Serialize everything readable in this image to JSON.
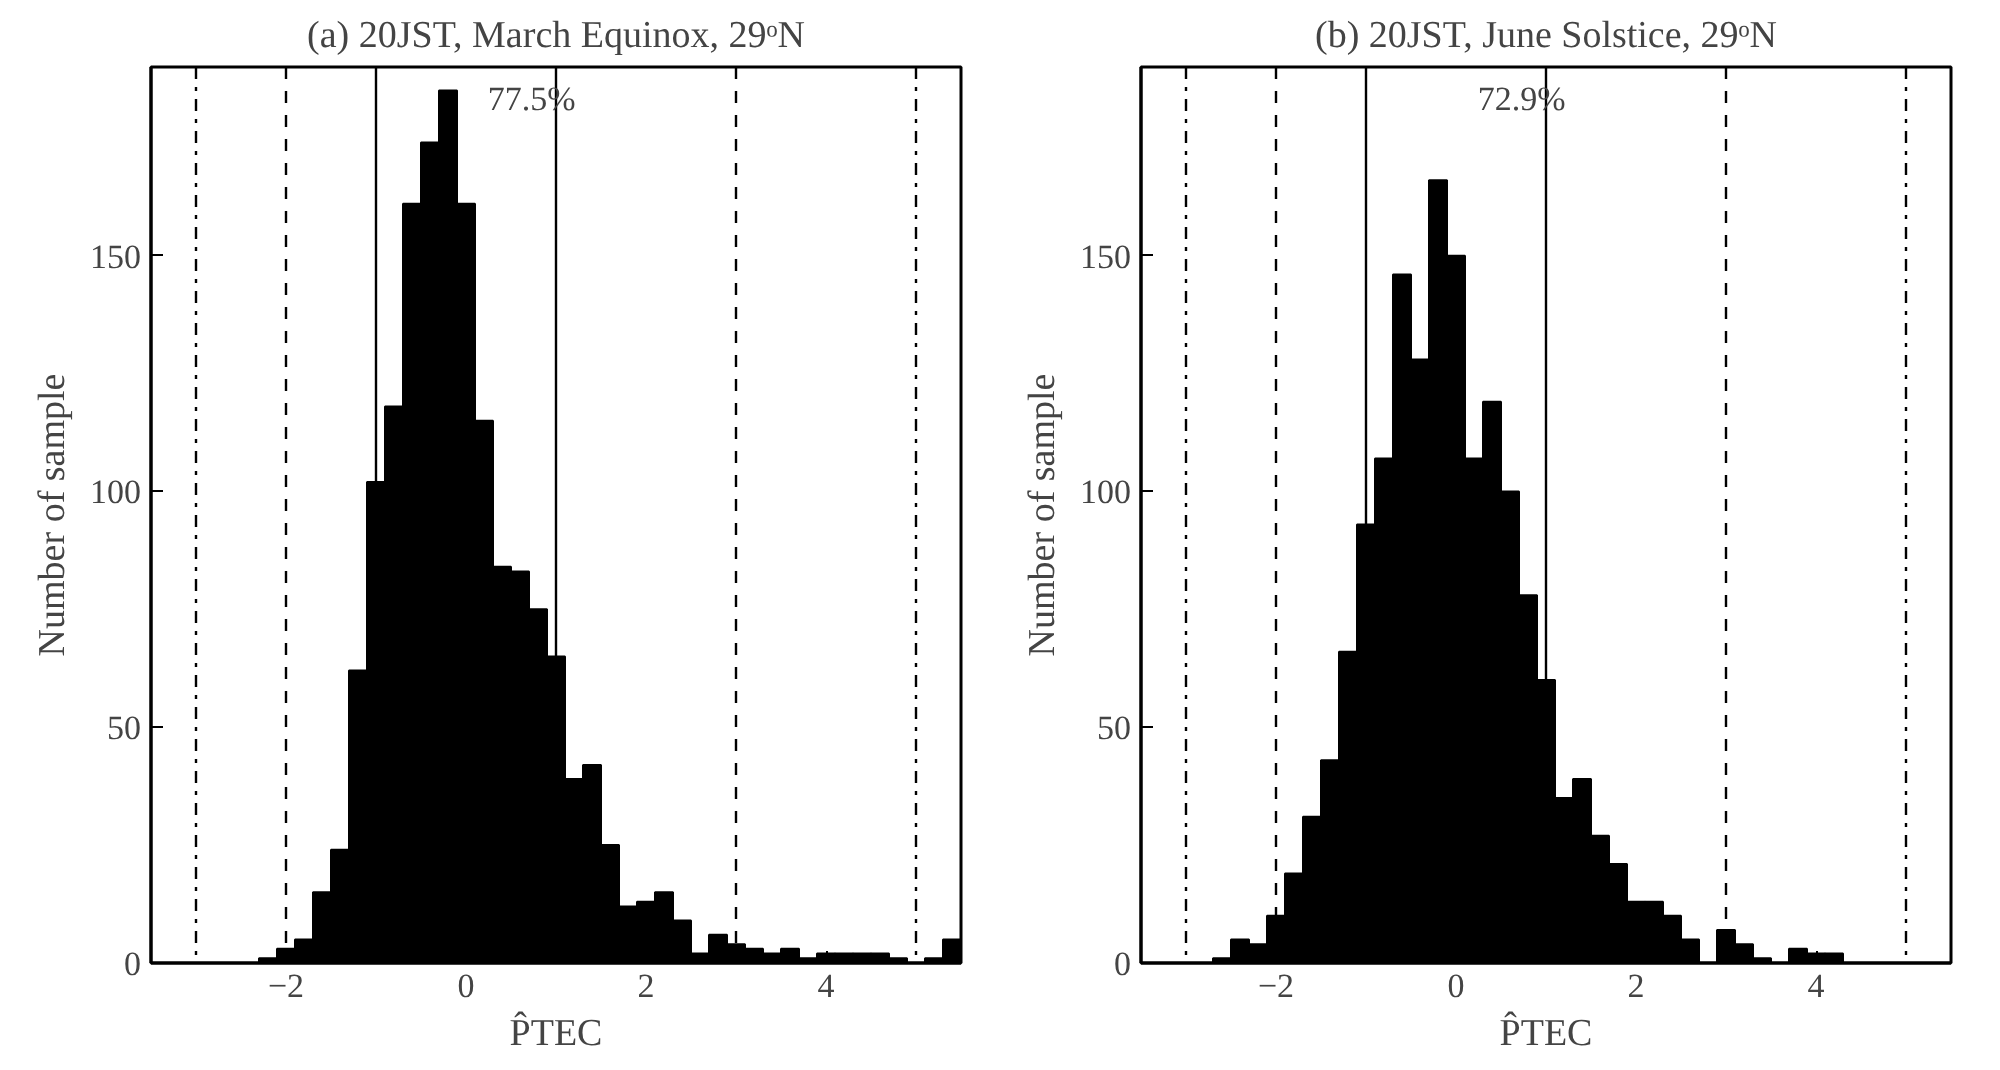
{
  "chart_data": [
    {
      "type": "histogram",
      "title": "(a) 20JST, March Equinox, 29ᵒN",
      "xlabel": "P̂TEC",
      "ylabel": "Number of sample",
      "bins": [
        -3.5,
        -3.3,
        -3.1,
        -2.9,
        -2.7,
        -2.5,
        -2.3,
        -2.1,
        -1.9,
        -1.7,
        -1.5,
        -1.3,
        -1.1,
        -0.9,
        -0.7,
        -0.5,
        -0.3,
        -0.1,
        0.1,
        0.3,
        0.5,
        0.7,
        0.9,
        1.1,
        1.3,
        1.5,
        1.7,
        1.9,
        2.1,
        2.3,
        2.5,
        2.7,
        2.9,
        3.1,
        3.3,
        3.5,
        3.7,
        3.9,
        4.1,
        4.3,
        4.5,
        4.7,
        4.9,
        5.1,
        5.3,
        5.5
      ],
      "values": [
        0,
        0,
        0,
        0,
        0,
        0,
        1,
        3,
        5,
        15,
        24,
        62,
        102,
        118,
        161,
        174,
        185,
        161,
        115,
        84,
        83,
        75,
        65,
        39,
        42,
        25,
        12,
        13,
        15,
        9,
        2,
        6,
        4,
        3,
        2,
        3,
        1,
        2,
        2,
        2,
        2,
        1,
        0,
        1,
        5
      ],
      "color": "#000000",
      "xlim": [
        -3.5,
        5.5
      ],
      "ylim": [
        0,
        190
      ],
      "xticks": [
        -2,
        0,
        2,
        4
      ],
      "yticks": [
        0,
        50,
        100,
        150
      ],
      "ref_lines": [
        {
          "axis": "x",
          "value": -3,
          "line_style": "dashdot"
        },
        {
          "axis": "x",
          "value": -2,
          "line_style": "dashed"
        },
        {
          "axis": "x",
          "value": -1,
          "line_style": "solid"
        },
        {
          "axis": "x",
          "value": 1,
          "line_style": "solid"
        },
        {
          "axis": "x",
          "value": 3,
          "line_style": "dashed"
        },
        {
          "axis": "x",
          "value": 5,
          "line_style": "dashdot"
        }
      ],
      "annotations": [
        "77.5%"
      ]
    },
    {
      "type": "histogram",
      "title": "(b) 20JST, June Solstice, 29ᵒN",
      "xlabel": "P̂TEC",
      "ylabel": "Number of sample",
      "bins": [
        -3.5,
        -3.3,
        -3.1,
        -2.9,
        -2.7,
        -2.5,
        -2.3,
        -2.1,
        -1.9,
        -1.7,
        -1.5,
        -1.3,
        -1.1,
        -0.9,
        -0.7,
        -0.5,
        -0.3,
        -0.1,
        0.1,
        0.3,
        0.5,
        0.7,
        0.9,
        1.1,
        1.3,
        1.5,
        1.7,
        1.9,
        2.1,
        2.3,
        2.5,
        2.7,
        2.9,
        3.1,
        3.3,
        3.5,
        3.7,
        3.9,
        4.1,
        4.3,
        4.5,
        4.7,
        4.9,
        5.1,
        5.3,
        5.5
      ],
      "values": [
        0,
        0,
        0,
        0,
        1,
        5,
        4,
        10,
        19,
        31,
        43,
        66,
        93,
        107,
        146,
        128,
        166,
        150,
        107,
        119,
        100,
        78,
        60,
        35,
        39,
        27,
        21,
        13,
        13,
        10,
        5,
        0,
        7,
        4,
        1,
        0,
        3,
        2,
        2,
        0,
        0,
        0,
        0,
        0,
        0
      ],
      "color": "#000000",
      "xlim": [
        -3.5,
        5.5
      ],
      "ylim": [
        0,
        190
      ],
      "xticks": [
        -2,
        0,
        2,
        4
      ],
      "yticks": [
        0,
        50,
        100,
        150
      ],
      "ref_lines": [
        {
          "axis": "x",
          "value": -3,
          "line_style": "dashdot"
        },
        {
          "axis": "x",
          "value": -2,
          "line_style": "dashed"
        },
        {
          "axis": "x",
          "value": -1,
          "line_style": "solid"
        },
        {
          "axis": "x",
          "value": 1,
          "line_style": "solid"
        },
        {
          "axis": "x",
          "value": 3,
          "line_style": "dashed"
        },
        {
          "axis": "x",
          "value": 5,
          "line_style": "dashdot"
        }
      ],
      "annotations": [
        "72.9%"
      ]
    }
  ]
}
